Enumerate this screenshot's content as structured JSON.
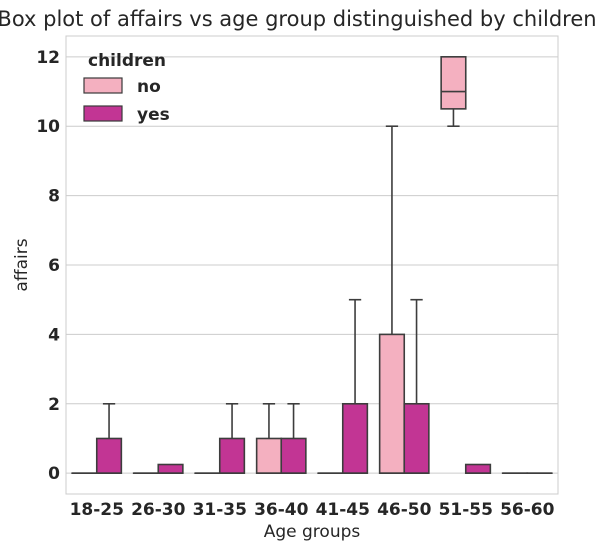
{
  "chart_data": {
    "type": "box",
    "title": "Box plot of affairs vs age group distinguished by children",
    "xlabel": "Age groups",
    "ylabel": "affairs",
    "categories": [
      "18-25",
      "26-30",
      "31-35",
      "36-40",
      "41-45",
      "46-50",
      "51-55",
      "56-60"
    ],
    "ylim": [
      -0.6,
      12.6
    ],
    "yticks": [
      0,
      2,
      4,
      6,
      8,
      10,
      12
    ],
    "grid": true,
    "legend": {
      "title": "children",
      "placement": "top-left"
    },
    "series": [
      {
        "name": "no",
        "color": "#f4b0c0",
        "boxes": [
          {
            "category": "18-25",
            "whisker_low": 0,
            "q1": 0,
            "median": 0,
            "q3": 0,
            "whisker_high": 0
          },
          {
            "category": "26-30",
            "whisker_low": 0,
            "q1": 0,
            "median": 0,
            "q3": 0,
            "whisker_high": 0
          },
          {
            "category": "31-35",
            "whisker_low": 0,
            "q1": 0,
            "median": 0,
            "q3": 0,
            "whisker_high": 0
          },
          {
            "category": "36-40",
            "whisker_low": 0,
            "q1": 0,
            "median": 0,
            "q3": 1,
            "whisker_high": 2
          },
          {
            "category": "41-45",
            "whisker_low": 0,
            "q1": 0,
            "median": 0,
            "q3": 0,
            "whisker_high": 0
          },
          {
            "category": "46-50",
            "whisker_low": 0,
            "q1": 0,
            "median": 0,
            "q3": 4,
            "whisker_high": 10
          },
          {
            "category": "51-55",
            "whisker_low": 10,
            "q1": 10.5,
            "median": 11,
            "q3": 12,
            "whisker_high": 12
          },
          {
            "category": "56-60",
            "whisker_low": 0,
            "q1": 0,
            "median": 0,
            "q3": 0,
            "whisker_high": 0
          }
        ]
      },
      {
        "name": "yes",
        "color": "#c23594",
        "boxes": [
          {
            "category": "18-25",
            "whisker_low": 0,
            "q1": 0,
            "median": 0,
            "q3": 1,
            "whisker_high": 2
          },
          {
            "category": "26-30",
            "whisker_low": 0,
            "q1": 0,
            "median": 0,
            "q3": 0.25,
            "whisker_high": 0.25
          },
          {
            "category": "31-35",
            "whisker_low": 0,
            "q1": 0,
            "median": 0,
            "q3": 1,
            "whisker_high": 2
          },
          {
            "category": "36-40",
            "whisker_low": 0,
            "q1": 0,
            "median": 0,
            "q3": 1,
            "whisker_high": 2
          },
          {
            "category": "41-45",
            "whisker_low": 0,
            "q1": 0,
            "median": 0,
            "q3": 2,
            "whisker_high": 5
          },
          {
            "category": "46-50",
            "whisker_low": 0,
            "q1": 0,
            "median": 0,
            "q3": 2,
            "whisker_high": 5
          },
          {
            "category": "51-55",
            "whisker_low": 0,
            "q1": 0,
            "median": 0,
            "q3": 0.25,
            "whisker_high": 0.25
          },
          {
            "category": "56-60",
            "whisker_low": 0,
            "q1": 0,
            "median": 0,
            "q3": 0,
            "whisker_high": 0
          }
        ]
      }
    ]
  }
}
